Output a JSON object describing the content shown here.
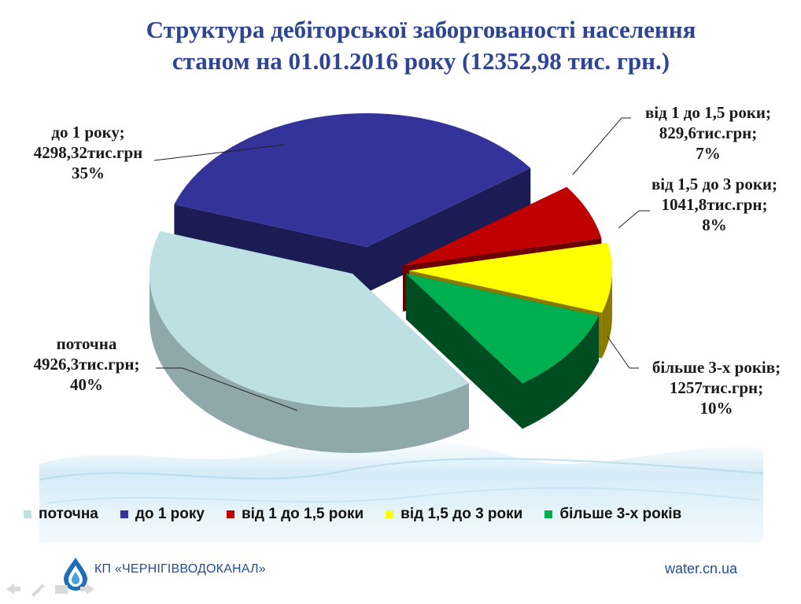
{
  "title_line1": "Структура дебіторської заборгованості населення",
  "title_line2": "станом на 01.01.2016 року (12352,98 тис. грн.)",
  "chart_data": {
    "type": "pie",
    "title": "Структура дебіторської заборгованості населення станом на 01.01.2016 року (12352,98 тис. грн.)",
    "unit": "тис.грн",
    "total": 12352.98,
    "slices": [
      {
        "name": "поточна",
        "value": 4926.3,
        "percent": 40,
        "color": "#BFE0E2",
        "side_color": "#8FA8AA"
      },
      {
        "name": "до 1 року",
        "value": 4298.32,
        "percent": 35,
        "color": "#333399",
        "side_color": "#1C1C55"
      },
      {
        "name": "від 1 до 1,5 роки",
        "value": 829.6,
        "percent": 7,
        "color": "#C00000",
        "side_color": "#6A0000"
      },
      {
        "name": "від 1,5 до 3 роки",
        "value": 1041.8,
        "percent": 8,
        "color": "#FFFF00",
        "side_color": "#8C7A00"
      },
      {
        "name": "більше 3-х років",
        "value": 1257,
        "percent": 10,
        "color": "#00B050",
        "side_color": "#004D22"
      }
    ],
    "data_labels": [
      {
        "line1": "поточна",
        "line2": "4926,3тис.грн;",
        "line3": "40%"
      },
      {
        "line1": "до 1 року;",
        "line2": "4298,32тис.грн",
        "line3": "35%"
      },
      {
        "line1": "від 1 до 1,5 роки;",
        "line2": "829,6тис.грн;",
        "line3": "7%"
      },
      {
        "line1": "від 1,5 до 3 роки;",
        "line2": "1041,8тис.грн;",
        "line3": "8%"
      },
      {
        "line1": "більше 3-х років;",
        "line2": "1257тис.грн;",
        "line3": "10%"
      }
    ],
    "legend_position": "bottom"
  },
  "legend": [
    {
      "label": "поточна",
      "color": "#BFE0E2"
    },
    {
      "label": "до 1 року",
      "color": "#333399"
    },
    {
      "label": "від 1 до 1,5 роки",
      "color": "#C00000"
    },
    {
      "label": "від 1,5 до 3 роки",
      "color": "#FFFF00"
    },
    {
      "label": "більше 3-х років",
      "color": "#00B050"
    }
  ],
  "footer": {
    "organization": "КП «ЧЕРНІГІВВОДОКАНАЛ»",
    "website": "water.cn.ua",
    "logo_icon": "water-drop-logo-icon"
  }
}
